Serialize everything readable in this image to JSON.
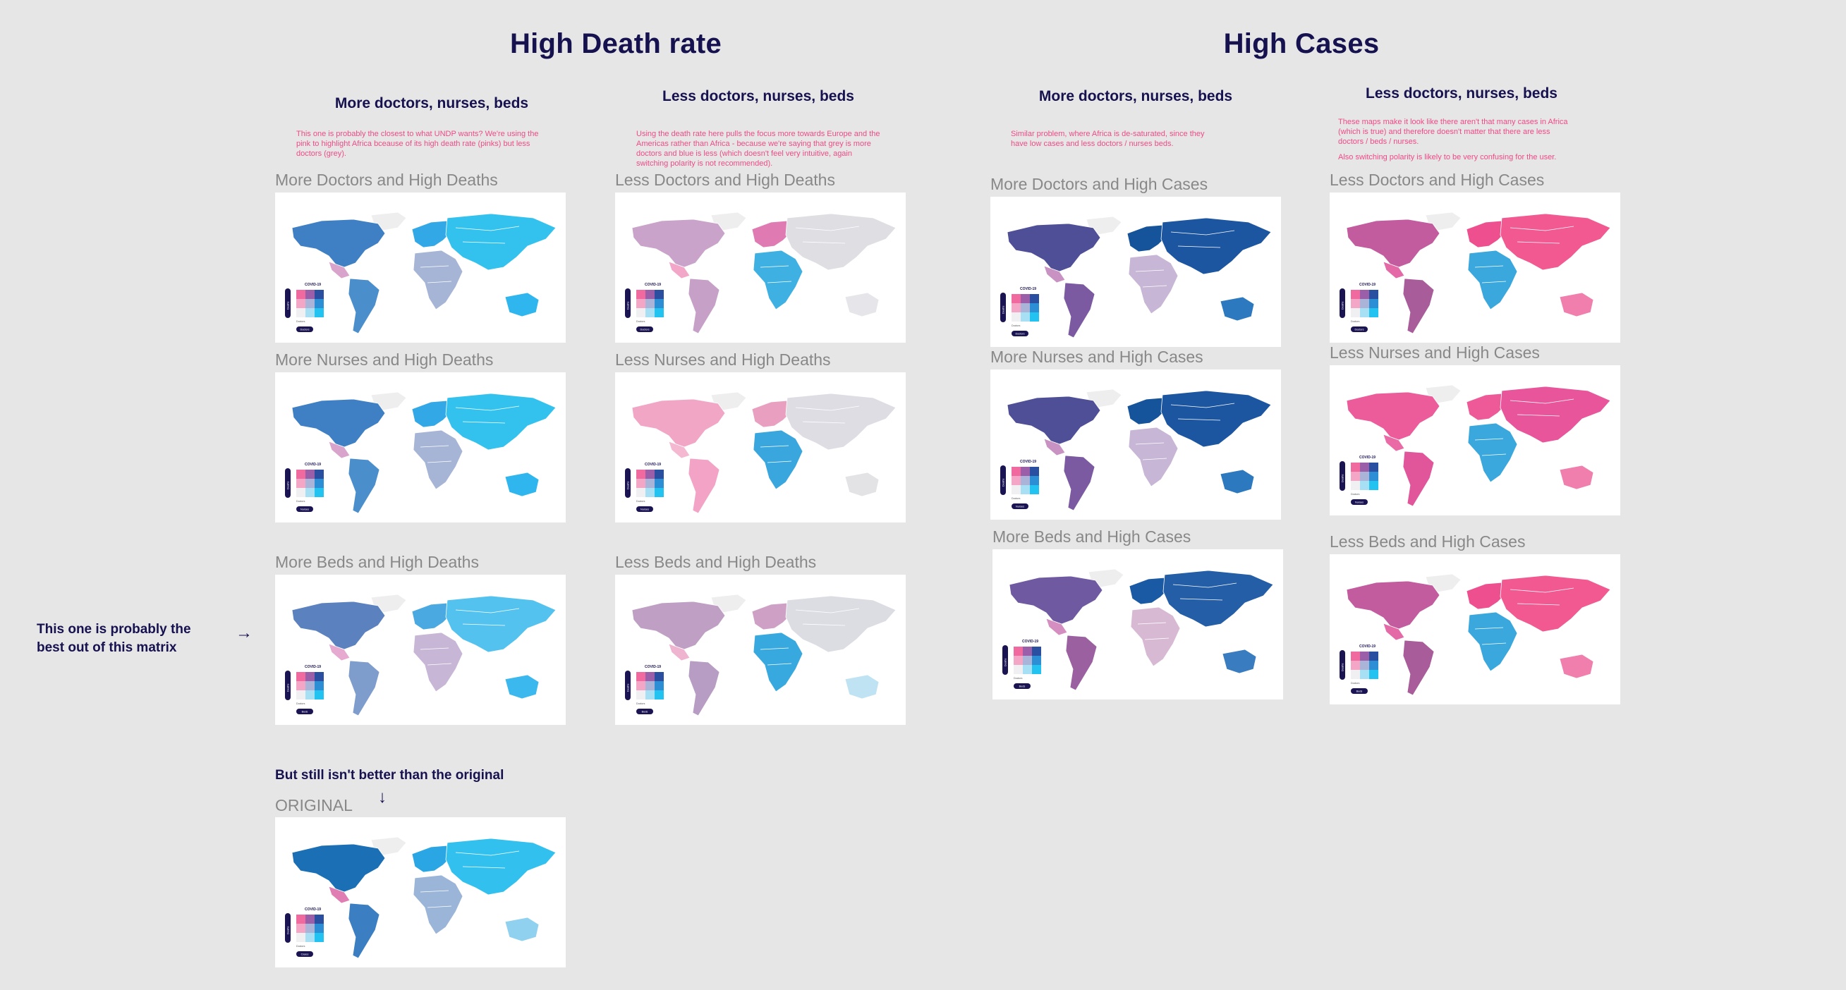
{
  "sections": {
    "death": "High Death rate",
    "cases": "High Cases"
  },
  "columns": [
    {
      "id": "c1",
      "heading": "More doctors, nurses, beds",
      "note": "This one is probably the closest to what UNDP wants? We're using the pink to highlight Africa bceause of its high death rate (pinks) but less doctors (grey)."
    },
    {
      "id": "c2",
      "heading": "Less doctors, nurses, beds",
      "note": "Using the death rate here pulls the focus more towards Europe and the Americas rather than Africa - because we're saying that grey is more doctors and blue is less (which doesn't feel very intuitive, again switching polarity is not recommended)."
    },
    {
      "id": "c3",
      "heading": "More doctors, nurses, beds",
      "note": "Similar problem, where Africa is de-saturated, since they have low cases and less doctors / nurses beds."
    },
    {
      "id": "c4",
      "heading": "Less doctors, nurses, beds",
      "note": "These maps make it look like there aren't that many cases in Africa (which is true) and therefore doesn't matter that there are less doctors / beds / nurses.",
      "note2": "Also switching polarity is likely to be very confusing for the user."
    }
  ],
  "maps": [
    {
      "label": "More Doctors and High Deaths",
      "palette": "blueA",
      "legend_pill": "Doctors"
    },
    {
      "label": "More Nurses and High Deaths",
      "palette": "blueA",
      "legend_pill": "Nurses"
    },
    {
      "label": "More Beds and High Deaths",
      "palette": "blueB",
      "legend_pill": "Beds"
    },
    {
      "label": "Less Doctors and High Deaths",
      "palette": "mauveA",
      "legend_pill": "Doctors"
    },
    {
      "label": "Less Nurses and High Deaths",
      "palette": "pinkA",
      "legend_pill": "Nurses"
    },
    {
      "label": "Less Beds and High Deaths",
      "palette": "mauveB",
      "legend_pill": "Beds"
    },
    {
      "label": "More Doctors and High Cases",
      "palette": "navyA",
      "legend_pill": "Doctors"
    },
    {
      "label": "More Nurses and High Cases",
      "palette": "navyA",
      "legend_pill": "Nurses"
    },
    {
      "label": "More Beds and High Cases",
      "palette": "navyB",
      "legend_pill": "Beds"
    },
    {
      "label": "Less Doctors and High Cases",
      "palette": "hotA",
      "legend_pill": "Doctors"
    },
    {
      "label": "Less Nurses and High Cases",
      "palette": "hotB",
      "legend_pill": "Nurses"
    },
    {
      "label": "Less Beds and High Cases",
      "palette": "hotA",
      "legend_pill": "Beds"
    },
    {
      "label": "ORIGINAL",
      "palette": "orig",
      "legend_pill": "Cases"
    }
  ],
  "legend": {
    "title": "COVID-19",
    "axis_left": "Deaths",
    "axis_bottom": "Doctors"
  },
  "sidenote": "This one is probably the best out of this matrix",
  "original_note": "But still isn't better than the original",
  "palettes": {
    "blueA": {
      "na": "#3f80c4",
      "sa": "#4a8fcc",
      "eu": "#33a8e6",
      "as": "#33c1ee",
      "af": "#a6b5d6",
      "oc": "#2fb6ee",
      "gl": "#eeeeee",
      "mx": "#d9a4cc"
    },
    "blueB": {
      "na": "#5b82bf",
      "sa": "#7e9dcc",
      "eu": "#4aa9e0",
      "as": "#53c2ee",
      "af": "#c7b6d6",
      "oc": "#3bb8ee",
      "gl": "#eeeeee",
      "mx": "#e6a9cf"
    },
    "mauveA": {
      "na": "#c9a3c9",
      "sa": "#c7a0c8",
      "eu": "#e07ab3",
      "as": "#dedee3",
      "af": "#3fb0e2",
      "oc": "#e6e6ea",
      "gl": "#eeeeee",
      "mx": "#f2a6c8"
    },
    "mauveB": {
      "na": "#bf9fc4",
      "sa": "#b79cc3",
      "eu": "#cfa0c6",
      "as": "#dcdce3",
      "af": "#38a9df",
      "oc": "#bfe3f3",
      "gl": "#eeeeee",
      "mx": "#efb4cf"
    },
    "pinkA": {
      "na": "#f2a6c6",
      "sa": "#f2a3c6",
      "eu": "#e9a0c0",
      "as": "#dddde3",
      "af": "#3aa6de",
      "oc": "#e3e3e6",
      "gl": "#eeeeee",
      "mx": "#f4b8d1"
    },
    "navyA": {
      "na": "#4e4f96",
      "sa": "#7b5aa2",
      "eu": "#15549b",
      "as": "#1d56a0",
      "af": "#c7b6d6",
      "oc": "#2c79c0",
      "gl": "#eeeeee",
      "mx": "#c892c2"
    },
    "navyB": {
      "na": "#6f5aa2",
      "sa": "#9b609f",
      "eu": "#1a5aa4",
      "as": "#245ea6",
      "af": "#d7b9d4",
      "oc": "#3a7cc0",
      "gl": "#eeeeee",
      "mx": "#d58ec0"
    },
    "hotA": {
      "na": "#c25c9e",
      "sa": "#a95c9a",
      "eu": "#ee4f8e",
      "as": "#f15990",
      "af": "#3aa7dd",
      "oc": "#f07fad",
      "gl": "#eeeeee",
      "mx": "#e36aa7"
    },
    "hotB": {
      "na": "#ec5b9a",
      "sa": "#e1569a",
      "eu": "#ee5a97",
      "as": "#e8559a",
      "af": "#3aa7dd",
      "oc": "#f07fad",
      "gl": "#eeeeee",
      "mx": "#ea6aa5"
    },
    "orig": {
      "na": "#1b6fb5",
      "sa": "#3b7fc2",
      "eu": "#2aa6e4",
      "as": "#32c1ee",
      "af": "#9bb5d8",
      "oc": "#8fd1ee",
      "gl": "#eeeeee",
      "mx": "#e07db2"
    }
  }
}
